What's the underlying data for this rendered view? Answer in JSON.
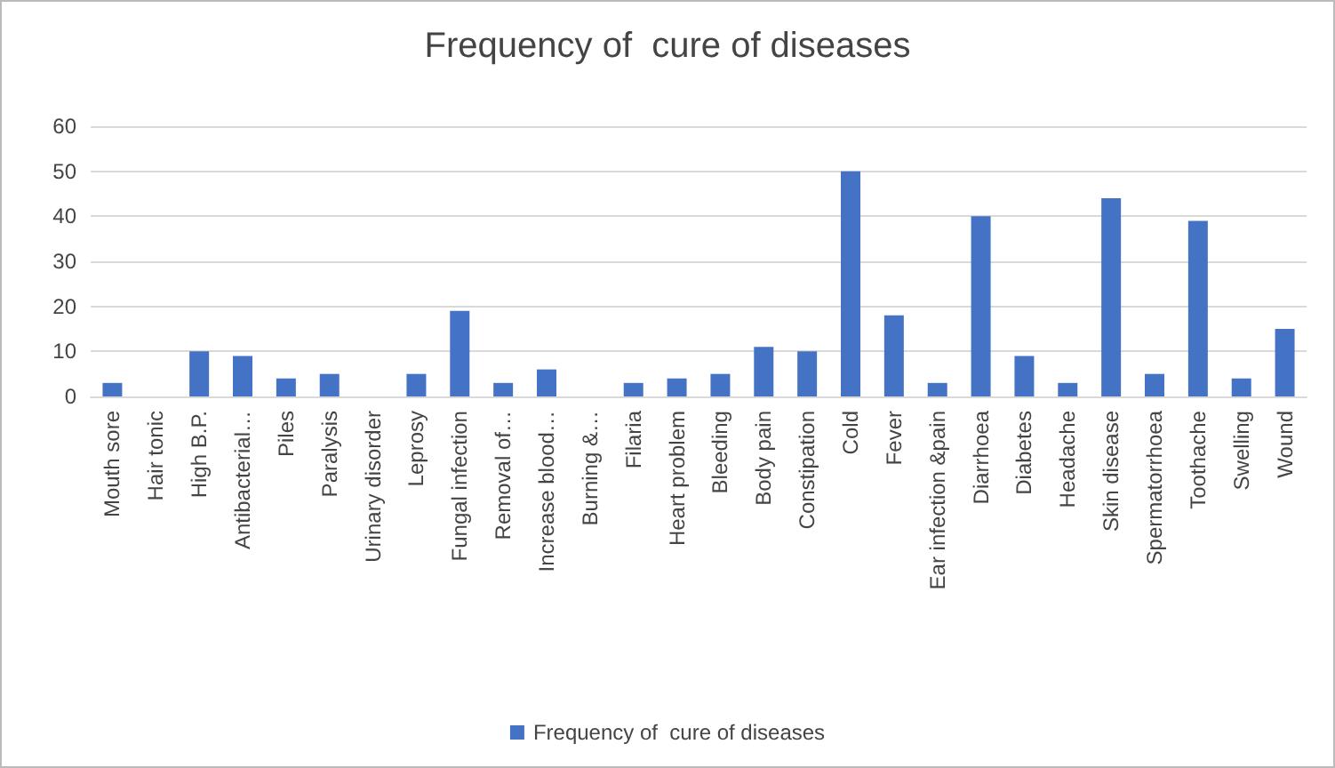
{
  "chart_data": {
    "type": "bar",
    "title": "Frequency of  cure of diseases",
    "categories": [
      "Mouth sore",
      "Hair tonic",
      "High B.P.",
      "Antibacterial…",
      "Piles",
      "Paralysis",
      "Urinary disorder",
      "Leprosy",
      "Fungal infection",
      "Removal of…",
      "Increase blood…",
      "Burning &…",
      "Filaria",
      "Heart problem",
      "Bleeding",
      "Body pain",
      "Constipation",
      "Cold",
      "Fever",
      "Ear infection &pain",
      "Diarrhoea",
      "Diabetes",
      "Headache",
      "Skin disease",
      "Spermatorrhoea",
      "Toothache",
      "Swelling",
      "Wound"
    ],
    "series": [
      {
        "name": "Frequency of  cure of diseases",
        "color": "#4472c4",
        "values": [
          3,
          0,
          10,
          9,
          4,
          5,
          0,
          5,
          19,
          3,
          6,
          0,
          3,
          4,
          5,
          11,
          10,
          50,
          18,
          3,
          40,
          9,
          3,
          44,
          5,
          39,
          4,
          15
        ]
      }
    ],
    "ylim": [
      0,
      60
    ],
    "yticks": [
      0,
      10,
      20,
      30,
      40,
      50,
      60
    ],
    "grid": "y",
    "legend": "bottom"
  }
}
